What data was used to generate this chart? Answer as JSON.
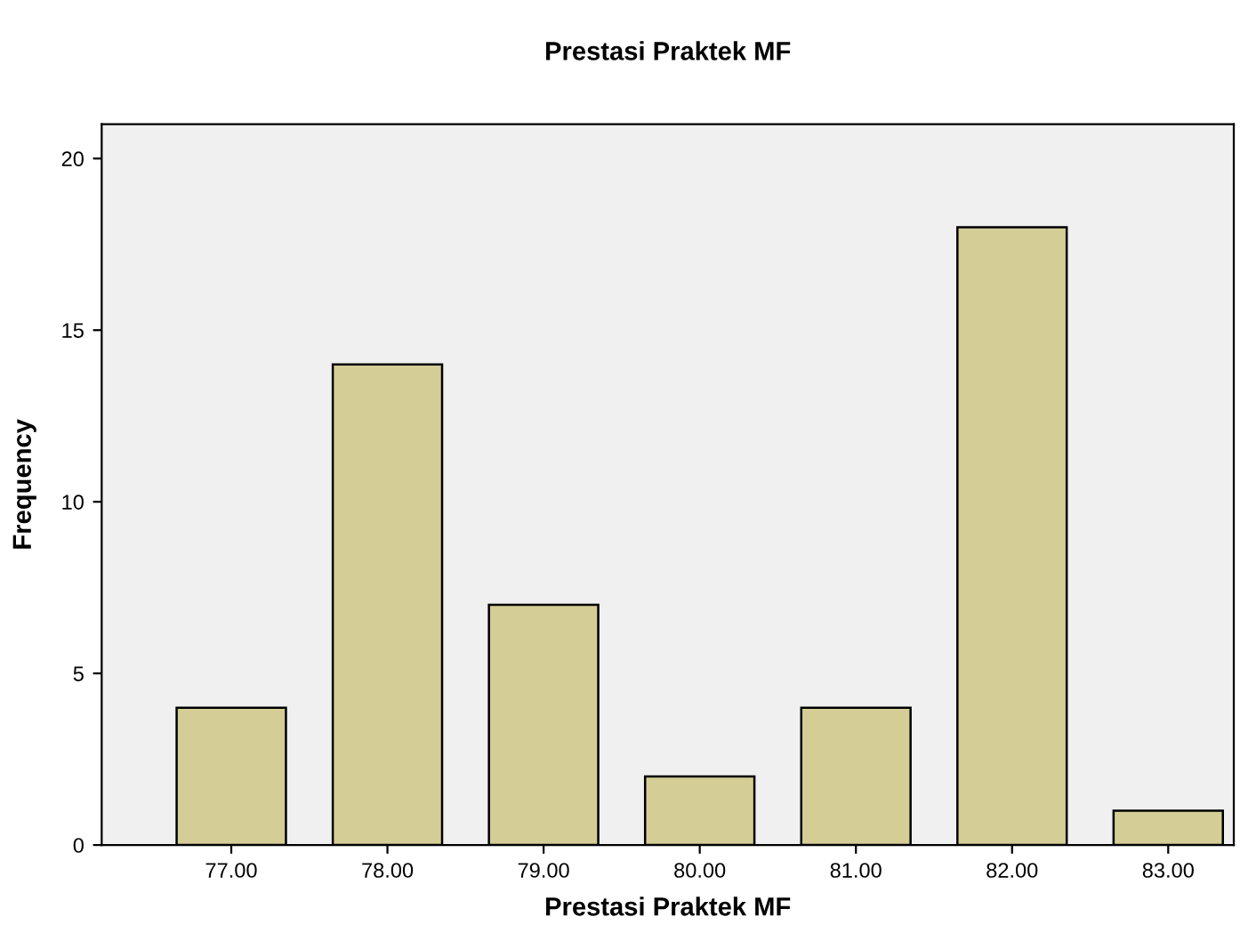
{
  "chart_data": {
    "type": "bar",
    "title": "Prestasi Praktek MF",
    "xlabel": "Prestasi Praktek MF",
    "ylabel": "Frequency",
    "categories": [
      "77.00",
      "78.00",
      "79.00",
      "80.00",
      "81.00",
      "82.00",
      "83.00"
    ],
    "values": [
      4,
      14,
      7,
      2,
      4,
      18,
      1
    ],
    "color": "#d4ce96",
    "ylim": [
      0,
      21
    ],
    "yticks": [
      0,
      5,
      10,
      15,
      20
    ],
    "grid": false
  }
}
